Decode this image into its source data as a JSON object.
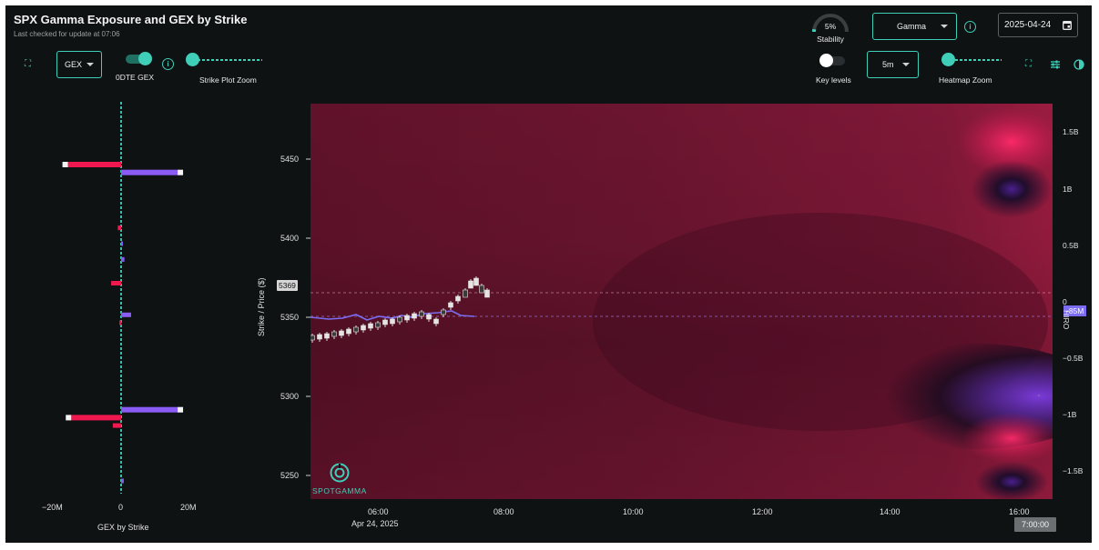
{
  "header": {
    "title": "SPX Gamma Exposure and GEX by Strike",
    "subtitle": "Last checked for update at 07:06"
  },
  "left_toolbar": {
    "metric_select": "GEX",
    "odte_label": "0DTE GEX",
    "strike_zoom_label": "Strike Plot Zoom"
  },
  "right_toolbar": {
    "stability_pct": "5%",
    "stability_label": "Stability",
    "stability_value": 0.05,
    "mode_select": "Gamma",
    "date_value": "2025-04-24",
    "key_levels_label": "Key levels",
    "interval_select": "5m",
    "heatmap_zoom_label": "Heatmap Zoom"
  },
  "gex_chart": {
    "xlabel": "GEX by Strike",
    "xticks": [
      "−20M",
      "0",
      "20M"
    ]
  },
  "heatmap": {
    "ylabel": "Strike / Price ($)",
    "yticks": [
      "5450",
      "5400",
      "5350",
      "5300",
      "5250"
    ],
    "price_marker": "5369",
    "xticks": [
      "06:00",
      "08:00",
      "10:00",
      "12:00",
      "14:00",
      "16:00"
    ],
    "date_label": "Apr 24, 2025",
    "hiro_label": "HIRO",
    "hiro_ticks": [
      "1.5B",
      "1B",
      "0.5B",
      "0",
      "−0.5B",
      "−1B",
      "−1.5B"
    ],
    "hiro_marker": "-85M",
    "time_marker": "7:00:00",
    "brand": "SPOTGAMMA"
  },
  "colors": {
    "accent": "#3fcfb8",
    "negative_bar": "#f0184f",
    "positive_bar": "#8a5cf5",
    "hiro_line": "#7b6cf0"
  },
  "chart_data": {
    "type": "bar",
    "orientation": "horizontal",
    "xlabel": "GEX by Strike",
    "ylabel": "Strike / Price ($)",
    "xlim": [
      -24,
      24
    ],
    "ylim": [
      5235,
      5482
    ],
    "categories": [
      5450,
      5445,
      5410,
      5400,
      5390,
      5375,
      5355,
      5350,
      5295,
      5290,
      5285,
      5250
    ],
    "values": [
      -16,
      17,
      -1,
      0.5,
      1,
      -3,
      3,
      -0.5,
      17,
      -15,
      -2.5,
      0.8
    ]
  }
}
